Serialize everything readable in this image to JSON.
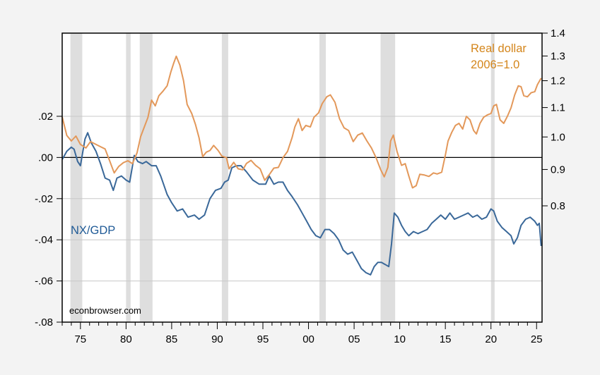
{
  "chart_data": {
    "type": "line",
    "title": "",
    "xlabel": "",
    "ylabel_left": "",
    "ylabel_right": "",
    "x_range": [
      1973.0,
      2025.6
    ],
    "x_ticks": [
      1975,
      1980,
      1985,
      1990,
      1995,
      2000,
      2005,
      2010,
      2015,
      2020,
      2025
    ],
    "x_tick_labels": [
      "75",
      "80",
      "85",
      "90",
      "95",
      "00",
      "05",
      "10",
      "15",
      "20",
      "25"
    ],
    "left_axis": {
      "ylim": [
        -0.08,
        0.0604
      ],
      "ticks": [
        0.02,
        0.0,
        -0.02,
        -0.04,
        -0.06,
        -0.08
      ],
      "tick_labels": [
        ".02",
        ".00",
        "-.02",
        "-.04",
        "-.06",
        "-.08"
      ],
      "scale": "linear"
    },
    "right_axis": {
      "ylim": [
        0.8,
        1.4
      ],
      "ticks": [
        1.4,
        1.3,
        1.2,
        1.1,
        1.0,
        0.9,
        0.8
      ],
      "tick_labels": [
        "1.4",
        "1.3",
        "1.2",
        "1.1",
        "1.0",
        "0.9",
        "0.8"
      ],
      "scale": "log"
    },
    "gridlines_left": [
      0.02,
      -0.02,
      -0.04,
      -0.06
    ],
    "zero_line": 0.0,
    "recession_shading": [
      [
        1973.9,
        1975.2
      ],
      [
        1980.0,
        1980.5
      ],
      [
        1981.5,
        1982.9
      ],
      [
        1990.5,
        1991.2
      ],
      [
        2001.2,
        2001.9
      ],
      [
        2007.9,
        2009.5
      ],
      [
        2020.0,
        2020.4
      ]
    ],
    "series": [
      {
        "name": "NX/GDP",
        "axis": "left",
        "color": "#3a6899",
        "label": "NX/GDP",
        "x": [
          1973.0,
          1973.5,
          1974.0,
          1974.3,
          1974.7,
          1975.0,
          1975.5,
          1975.8,
          1976.2,
          1976.7,
          1977.2,
          1977.7,
          1978.2,
          1978.6,
          1979.0,
          1979.5,
          1980.0,
          1980.4,
          1980.9,
          1981.3,
          1981.8,
          1982.2,
          1982.8,
          1983.3,
          1983.8,
          1984.5,
          1985.0,
          1985.6,
          1986.2,
          1986.8,
          1987.5,
          1988.0,
          1988.6,
          1989.2,
          1989.8,
          1990.4,
          1990.8,
          1991.2,
          1991.6,
          1992.1,
          1992.6,
          1993.2,
          1993.9,
          1994.6,
          1995.3,
          1995.7,
          1996.2,
          1996.7,
          1997.2,
          1997.7,
          1998.2,
          1998.8,
          1999.3,
          1999.8,
          2000.3,
          2000.8,
          2001.3,
          2001.8,
          2002.3,
          2002.8,
          2003.3,
          2003.8,
          2004.3,
          2004.8,
          2005.3,
          2005.8,
          2006.3,
          2006.8,
          2007.2,
          2007.6,
          2008.0,
          2008.4,
          2008.8,
          2009.1,
          2009.4,
          2009.8,
          2010.2,
          2010.6,
          2011.0,
          2011.5,
          2012.0,
          2012.5,
          2013.0,
          2013.5,
          2014.0,
          2014.5,
          2015.0,
          2015.5,
          2016.0,
          2016.5,
          2017.0,
          2017.5,
          2018.0,
          2018.5,
          2019.0,
          2019.5,
          2020.0,
          2020.3,
          2020.7,
          2021.2,
          2021.7,
          2022.2,
          2022.5,
          2022.9,
          2023.3,
          2023.8,
          2024.3,
          2024.8,
          2025.1,
          2025.3,
          2025.5
        ],
        "values": [
          -0.001,
          0.003,
          0.005,
          0.004,
          -0.002,
          -0.004,
          0.009,
          0.012,
          0.007,
          0.003,
          -0.003,
          -0.01,
          -0.011,
          -0.016,
          -0.01,
          -0.009,
          -0.011,
          -0.012,
          0.001,
          -0.002,
          -0.003,
          -0.002,
          -0.004,
          -0.004,
          -0.009,
          -0.018,
          -0.022,
          -0.026,
          -0.025,
          -0.029,
          -0.028,
          -0.03,
          -0.028,
          -0.02,
          -0.016,
          -0.015,
          -0.012,
          -0.011,
          -0.005,
          -0.004,
          -0.004,
          -0.007,
          -0.011,
          -0.013,
          -0.013,
          -0.009,
          -0.013,
          -0.012,
          -0.012,
          -0.016,
          -0.019,
          -0.023,
          -0.027,
          -0.031,
          -0.035,
          -0.038,
          -0.039,
          -0.035,
          -0.035,
          -0.037,
          -0.04,
          -0.045,
          -0.047,
          -0.046,
          -0.05,
          -0.054,
          -0.056,
          -0.057,
          -0.053,
          -0.051,
          -0.051,
          -0.052,
          -0.053,
          -0.042,
          -0.027,
          -0.029,
          -0.033,
          -0.036,
          -0.038,
          -0.036,
          -0.037,
          -0.036,
          -0.035,
          -0.032,
          -0.03,
          -0.028,
          -0.03,
          -0.027,
          -0.03,
          -0.029,
          -0.028,
          -0.027,
          -0.029,
          -0.028,
          -0.03,
          -0.029,
          -0.025,
          -0.026,
          -0.031,
          -0.034,
          -0.036,
          -0.038,
          -0.042,
          -0.039,
          -0.033,
          -0.03,
          -0.029,
          -0.031,
          -0.033,
          -0.032,
          -0.043
        ]
      },
      {
        "name": "Real dollar",
        "axis": "right",
        "color": "#e3985a",
        "label_line1": "Real dollar",
        "label_line2": "2006=1.0",
        "x": [
          1973.0,
          1973.5,
          1974.0,
          1974.5,
          1975.0,
          1975.6,
          1976.1,
          1976.7,
          1977.2,
          1977.7,
          1978.2,
          1978.7,
          1979.2,
          1979.7,
          1980.2,
          1980.7,
          1981.2,
          1981.6,
          1982.0,
          1982.4,
          1982.8,
          1983.2,
          1983.6,
          1984.0,
          1984.5,
          1984.9,
          1985.2,
          1985.5,
          1985.9,
          1986.3,
          1986.7,
          1987.2,
          1987.6,
          1988.0,
          1988.4,
          1988.8,
          1989.2,
          1989.6,
          1990.1,
          1990.5,
          1991.0,
          1991.3,
          1991.8,
          1992.3,
          1992.8,
          1993.2,
          1993.7,
          1994.2,
          1994.7,
          1995.2,
          1995.7,
          1996.2,
          1996.7,
          1997.2,
          1997.7,
          1998.2,
          1998.5,
          1998.9,
          1999.3,
          1999.7,
          2000.2,
          2000.6,
          2001.1,
          2001.5,
          2002.0,
          2002.4,
          2002.9,
          2003.4,
          2003.9,
          2004.4,
          2004.9,
          2005.4,
          2005.9,
          2006.4,
          2006.9,
          2007.4,
          2007.9,
          2008.3,
          2008.7,
          2009.0,
          2009.3,
          2009.7,
          2010.2,
          2010.6,
          2011.0,
          2011.4,
          2011.8,
          2012.2,
          2012.7,
          2013.2,
          2013.7,
          2014.1,
          2014.6,
          2015.0,
          2015.3,
          2015.7,
          2016.1,
          2016.5,
          2016.9,
          2017.3,
          2017.7,
          2018.1,
          2018.4,
          2018.8,
          2019.2,
          2019.6,
          2020.0,
          2020.3,
          2020.6,
          2021.0,
          2021.4,
          2021.8,
          2022.2,
          2022.6,
          2023.0,
          2023.3,
          2023.6,
          2024.0,
          2024.4,
          2024.8,
          2025.1,
          2025.5
        ],
        "values": [
          1.067,
          1.005,
          0.987,
          1.003,
          0.976,
          0.965,
          0.985,
          0.976,
          0.969,
          0.962,
          0.926,
          0.89,
          0.909,
          0.92,
          0.926,
          0.917,
          0.95,
          1.001,
          1.033,
          1.065,
          1.127,
          1.106,
          1.143,
          1.158,
          1.18,
          1.233,
          1.268,
          1.299,
          1.262,
          1.2,
          1.111,
          1.079,
          1.042,
          0.998,
          0.938,
          0.952,
          0.957,
          0.973,
          0.957,
          0.94,
          0.935,
          0.902,
          0.921,
          0.902,
          0.899,
          0.918,
          0.927,
          0.912,
          0.902,
          0.869,
          0.885,
          0.904,
          0.906,
          0.935,
          0.954,
          0.998,
          1.033,
          1.061,
          1.021,
          1.038,
          1.033,
          1.066,
          1.081,
          1.114,
          1.139,
          1.146,
          1.119,
          1.061,
          1.03,
          1.021,
          0.985,
          1.006,
          1.013,
          0.987,
          0.965,
          0.935,
          0.9,
          0.879,
          0.906,
          0.987,
          1.006,
          0.954,
          0.912,
          0.917,
          0.881,
          0.848,
          0.854,
          0.886,
          0.884,
          0.88,
          0.89,
          0.887,
          0.892,
          0.943,
          0.987,
          1.015,
          1.038,
          1.045,
          1.026,
          1.069,
          1.057,
          1.021,
          1.01,
          1.045,
          1.066,
          1.074,
          1.079,
          1.106,
          1.111,
          1.057,
          1.045,
          1.069,
          1.099,
          1.146,
          1.18,
          1.177,
          1.143,
          1.139,
          1.154,
          1.158,
          1.185,
          1.21
        ]
      }
    ],
    "annotations": {
      "watermark": "econbrowser.com"
    }
  },
  "colors": {
    "nx_line": "#3a6899",
    "nx_label": "#1f5a96",
    "dollar_line": "#e3985a",
    "dollar_label": "#d4861c",
    "shading": "#dedede",
    "grid": "#c8c8c8",
    "background": "#f3f3f3",
    "plot_bg": "#ffffff"
  }
}
